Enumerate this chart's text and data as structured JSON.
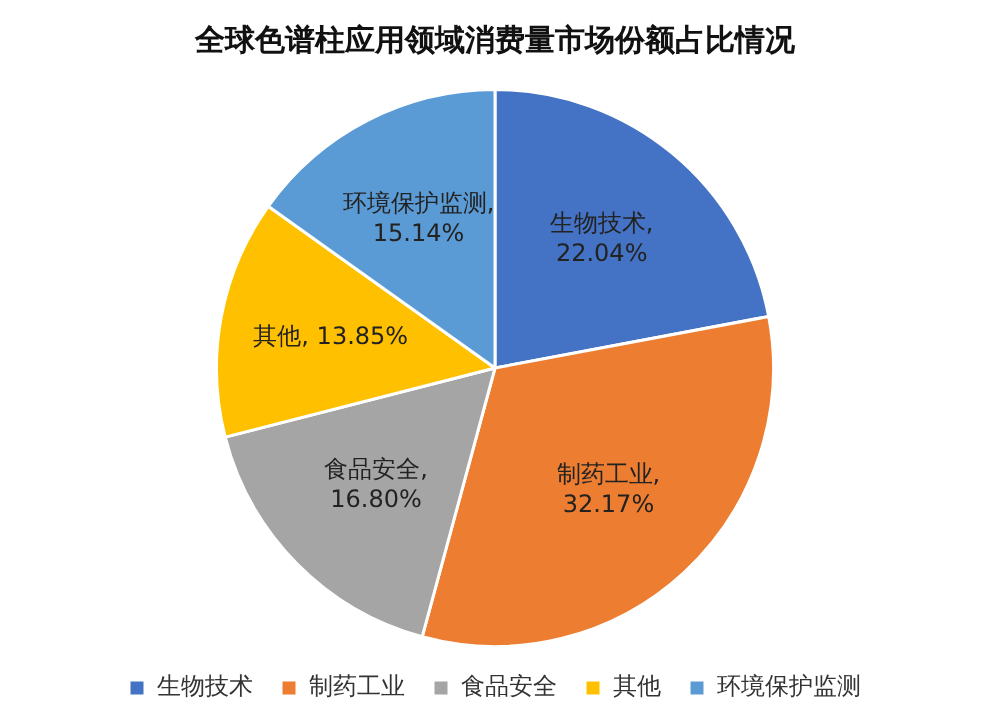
{
  "chart_data": {
    "type": "pie",
    "title": "全球色谱柱应用领域消费量市场份额占比情况",
    "categories": [
      "生物技术",
      "制药工业",
      "食品安全",
      "其他",
      "环境保护监测"
    ],
    "values": [
      22.04,
      32.17,
      16.8,
      13.85,
      15.14
    ],
    "colors": [
      "#4472c4",
      "#ed7d31",
      "#a5a5a5",
      "#ffc000",
      "#5b9bd5"
    ],
    "value_labels": [
      "生物技术, 22.04%",
      "制药工业, 32.17%",
      "食品安全, 16.80%",
      "其他, 13.85%",
      "环境保护监测, 15.14%"
    ],
    "legend": "bottom"
  }
}
